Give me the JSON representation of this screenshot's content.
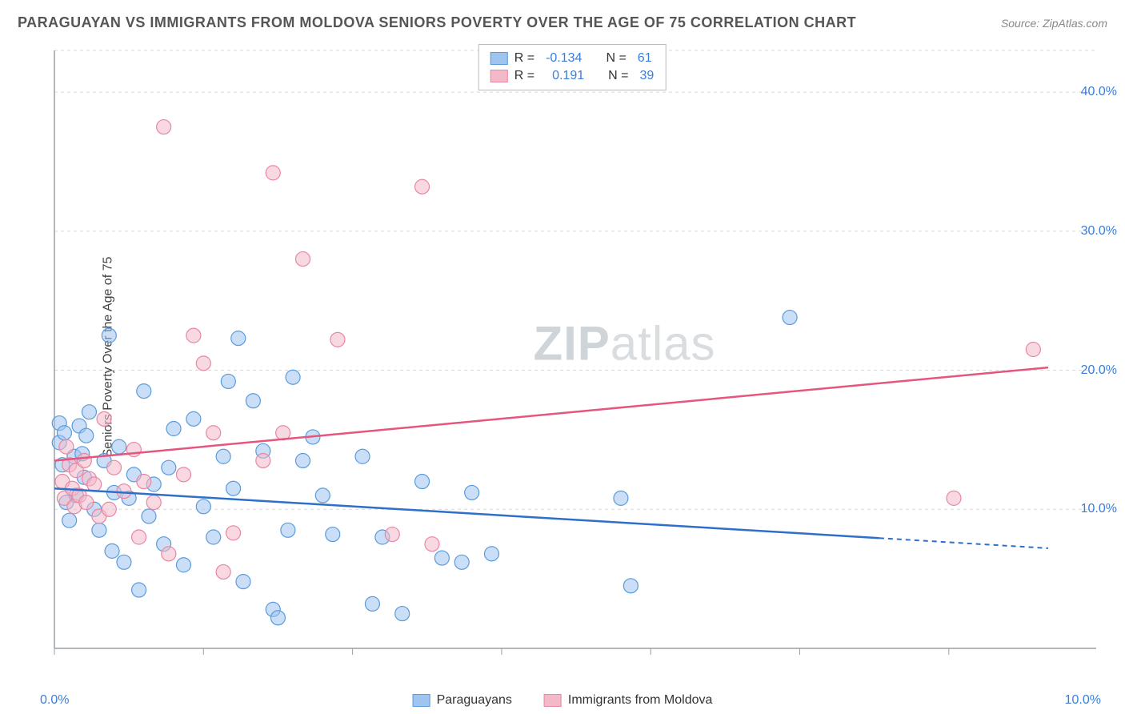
{
  "header": {
    "title": "PARAGUAYAN VS IMMIGRANTS FROM MOLDOVA SENIORS POVERTY OVER THE AGE OF 75 CORRELATION CHART",
    "source": "Source: ZipAtlas.com"
  },
  "watermark": {
    "bold": "ZIP",
    "rest": "atlas"
  },
  "y_axis_label": "Seniors Poverty Over the Age of 75",
  "chart": {
    "type": "scatter",
    "background_color": "#ffffff",
    "grid_color": "#d8d8d8",
    "axis_color": "#9aa0a6",
    "xlim": [
      0,
      10
    ],
    "ylim": [
      0,
      43
    ],
    "x_ticks": [
      0,
      1.5,
      3,
      4.5,
      6,
      7.5,
      9
    ],
    "x_tick_labels": {
      "start": "0.0%",
      "end": "10.0%"
    },
    "y_ticks": [
      10,
      20,
      30,
      40
    ],
    "y_tick_labels": [
      "10.0%",
      "20.0%",
      "30.0%",
      "40.0%"
    ],
    "series": [
      {
        "id": "paraguayans",
        "label": "Paraguayans",
        "color_fill": "#9ec5f0",
        "color_stroke": "#5a9bdc",
        "legend_R": "-0.134",
        "legend_N": "61",
        "trend": {
          "y0": 11.5,
          "y1": 7.2,
          "x_solid_end": 8.3,
          "color": "#2e6fc9"
        },
        "points": [
          [
            0.05,
            14.8
          ],
          [
            0.05,
            16.2
          ],
          [
            0.08,
            13.2
          ],
          [
            0.1,
            15.5
          ],
          [
            0.12,
            10.5
          ],
          [
            0.15,
            9.2
          ],
          [
            0.2,
            13.8
          ],
          [
            0.22,
            11.0
          ],
          [
            0.25,
            16.0
          ],
          [
            0.28,
            14.0
          ],
          [
            0.3,
            12.3
          ],
          [
            0.32,
            15.3
          ],
          [
            0.35,
            17.0
          ],
          [
            0.4,
            10.0
          ],
          [
            0.45,
            8.5
          ],
          [
            0.5,
            13.5
          ],
          [
            0.55,
            22.5
          ],
          [
            0.58,
            7.0
          ],
          [
            0.6,
            11.2
          ],
          [
            0.65,
            14.5
          ],
          [
            0.7,
            6.2
          ],
          [
            0.75,
            10.8
          ],
          [
            0.8,
            12.5
          ],
          [
            0.85,
            4.2
          ],
          [
            0.9,
            18.5
          ],
          [
            0.95,
            9.5
          ],
          [
            1.0,
            11.8
          ],
          [
            1.1,
            7.5
          ],
          [
            1.15,
            13.0
          ],
          [
            1.2,
            15.8
          ],
          [
            1.3,
            6.0
          ],
          [
            1.4,
            16.5
          ],
          [
            1.5,
            10.2
          ],
          [
            1.6,
            8.0
          ],
          [
            1.7,
            13.8
          ],
          [
            1.75,
            19.2
          ],
          [
            1.8,
            11.5
          ],
          [
            1.85,
            22.3
          ],
          [
            1.9,
            4.8
          ],
          [
            2.0,
            17.8
          ],
          [
            2.1,
            14.2
          ],
          [
            2.2,
            2.8
          ],
          [
            2.25,
            2.2
          ],
          [
            2.35,
            8.5
          ],
          [
            2.4,
            19.5
          ],
          [
            2.5,
            13.5
          ],
          [
            2.6,
            15.2
          ],
          [
            2.7,
            11.0
          ],
          [
            2.8,
            8.2
          ],
          [
            3.1,
            13.8
          ],
          [
            3.2,
            3.2
          ],
          [
            3.3,
            8.0
          ],
          [
            3.5,
            2.5
          ],
          [
            3.7,
            12.0
          ],
          [
            3.9,
            6.5
          ],
          [
            4.1,
            6.2
          ],
          [
            4.2,
            11.2
          ],
          [
            4.4,
            6.8
          ],
          [
            5.7,
            10.8
          ],
          [
            5.8,
            4.5
          ],
          [
            7.4,
            23.8
          ]
        ]
      },
      {
        "id": "moldova",
        "label": "Immigrants from Moldova",
        "color_fill": "#f4b9c8",
        "color_stroke": "#e986a3",
        "legend_R": "0.191",
        "legend_N": "39",
        "trend": {
          "y0": 13.5,
          "y1": 20.2,
          "x_solid_end": 10.0,
          "color": "#e4567d"
        },
        "points": [
          [
            0.08,
            12.0
          ],
          [
            0.1,
            10.8
          ],
          [
            0.12,
            14.5
          ],
          [
            0.15,
            13.2
          ],
          [
            0.18,
            11.5
          ],
          [
            0.2,
            10.2
          ],
          [
            0.22,
            12.8
          ],
          [
            0.25,
            11.0
          ],
          [
            0.3,
            13.5
          ],
          [
            0.32,
            10.5
          ],
          [
            0.35,
            12.2
          ],
          [
            0.4,
            11.8
          ],
          [
            0.45,
            9.5
          ],
          [
            0.5,
            16.5
          ],
          [
            0.55,
            10.0
          ],
          [
            0.6,
            13.0
          ],
          [
            0.7,
            11.3
          ],
          [
            0.8,
            14.3
          ],
          [
            0.85,
            8.0
          ],
          [
            0.9,
            12.0
          ],
          [
            1.0,
            10.5
          ],
          [
            1.1,
            37.5
          ],
          [
            1.15,
            6.8
          ],
          [
            1.3,
            12.5
          ],
          [
            1.4,
            22.5
          ],
          [
            1.5,
            20.5
          ],
          [
            1.6,
            15.5
          ],
          [
            1.7,
            5.5
          ],
          [
            1.8,
            8.3
          ],
          [
            2.1,
            13.5
          ],
          [
            2.2,
            34.2
          ],
          [
            2.3,
            15.5
          ],
          [
            2.5,
            28.0
          ],
          [
            2.85,
            22.2
          ],
          [
            3.4,
            8.2
          ],
          [
            3.7,
            33.2
          ],
          [
            3.8,
            7.5
          ],
          [
            9.05,
            10.8
          ],
          [
            9.85,
            21.5
          ]
        ]
      }
    ]
  },
  "legend_box": {
    "rows": [
      {
        "series": 0,
        "R_label": "R =",
        "N_label": "N ="
      },
      {
        "series": 1,
        "R_label": "R =",
        "N_label": "N ="
      }
    ]
  }
}
